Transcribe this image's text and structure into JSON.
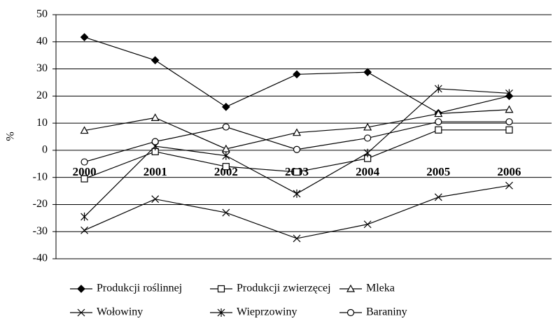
{
  "chart_data": {
    "type": "line",
    "y_label": "%",
    "categories": [
      "2000",
      "2001",
      "2002",
      "2003",
      "2004",
      "2005",
      "2006"
    ],
    "series": [
      {
        "name": "Produkcji roślinnej",
        "color": "#000000",
        "marker": "diamond",
        "values": [
          41.7,
          33.2,
          16,
          28,
          28.8,
          13.7,
          20
        ]
      },
      {
        "name": "Produkcji zwierzęcej",
        "color": "#000000",
        "marker": "square",
        "values": [
          -10.5,
          -0.5,
          -6,
          -8,
          -3,
          7.5,
          7.5
        ]
      },
      {
        "name": "Mleka",
        "color": "#000000",
        "marker": "triangle",
        "values": [
          7.3,
          12,
          0.5,
          6.5,
          8.5,
          13.5,
          15
        ]
      },
      {
        "name": "Wołowiny",
        "color": "#000000",
        "marker": "x",
        "values": [
          -29.5,
          -18,
          -23,
          -32.5,
          -27.3,
          -17.3,
          -13
        ]
      },
      {
        "name": "Wieprzowiny",
        "color": "#000000",
        "marker": "asterisk",
        "values": [
          -24.5,
          1.5,
          -2,
          -16,
          -1,
          22.7,
          21
        ]
      },
      {
        "name": "Baraniny",
        "color": "#000000",
        "marker": "circle",
        "values": [
          -4.3,
          3.2,
          8.6,
          0.3,
          4.5,
          10.5,
          10.5
        ]
      }
    ],
    "ylim": [
      -40,
      50
    ],
    "yticks": [
      -40,
      -30,
      -20,
      -10,
      0,
      10,
      20,
      30,
      40,
      50
    ],
    "grid": true,
    "legend": "bottom"
  }
}
